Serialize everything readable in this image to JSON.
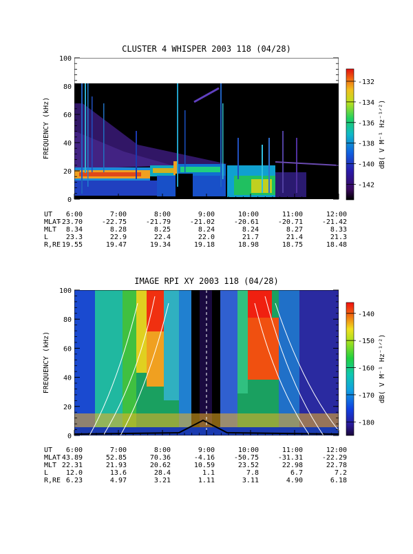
{
  "chart_data": [
    {
      "type": "heatmap",
      "title": "CLUSTER 4 WHISPER 2003 118 (04/28)",
      "ylabel": "FREQUENCY (kHz)",
      "ylim": [
        0,
        100
      ],
      "y_ticks": [
        "0",
        "20",
        "40",
        "60",
        "80",
        "100"
      ],
      "data_ylim": [
        0,
        80
      ],
      "x_ticks": [
        "6:00",
        "7:00",
        "8:00",
        "9:00",
        "10:00",
        "11:00",
        "12:00"
      ],
      "colorbar": {
        "label": "dB( V M⁻¹ Hz⁻¹ᐟ²)",
        "ticks": [
          "-132",
          "-134",
          "-136",
          "-138",
          "-140",
          "-142"
        ],
        "tick_values": [
          -132,
          -134,
          -136,
          -138,
          -140,
          -142
        ],
        "range": [
          -143.5,
          -130.8
        ]
      },
      "ephemeris": {
        "labels": [
          "UT",
          "MLAT",
          "MLT",
          "L",
          "R,RE"
        ],
        "rows": [
          [
            "6:00",
            "7:00",
            "8:00",
            "9:00",
            "10:00",
            "11:00",
            "12:00"
          ],
          [
            "-23.70",
            "-22.75",
            "-21.79",
            "-21.02",
            "-20.61",
            "-20.71",
            "-21.42"
          ],
          [
            "8.34",
            "8.28",
            "8.25",
            "8.24",
            "8.24",
            "8.27",
            "8.33"
          ],
          [
            "23.3",
            "22.9",
            "22.4",
            "22.0",
            "21.7",
            "21.4",
            "21.3"
          ],
          [
            "19.55",
            "19.47",
            "19.34",
            "19.18",
            "18.98",
            "18.75",
            "18.48"
          ]
        ]
      }
    },
    {
      "type": "heatmap",
      "title": "IMAGE RPI XY 2003 118 (04/28)",
      "ylabel": "FREQUENCY (kHz)",
      "ylim": [
        0,
        100
      ],
      "y_ticks": [
        "0",
        "20",
        "40",
        "60",
        "80",
        "100"
      ],
      "x_ticks": [
        "6:00",
        "7:00",
        "8:00",
        "9:00",
        "10:00",
        "11:00",
        "12:00"
      ],
      "colorbar": {
        "label": "dB( V M⁻¹ Hz⁻¹ᐟ²)",
        "ticks": [
          "-140",
          "-150",
          "-160",
          "-170",
          "-180"
        ],
        "tick_values": [
          -140,
          -150,
          -160,
          -170,
          -180
        ],
        "range": [
          -185,
          -136
        ]
      },
      "ephemeris": {
        "labels": [
          "UT",
          "MLAT",
          "MLT",
          "L",
          "R,RE"
        ],
        "rows": [
          [
            "6:00",
            "7:00",
            "8:00",
            "9:00",
            "10:00",
            "11:00",
            "12:00"
          ],
          [
            "43.89",
            "52.85",
            "70.36",
            "-4.16",
            "-50.75",
            "-31.31",
            "-22.29"
          ],
          [
            "22.31",
            "21.93",
            "20.62",
            "10.59",
            "23.52",
            "22.98",
            "22.78"
          ],
          [
            "12.0",
            "13.6",
            "28.4",
            "1.1",
            "7.8",
            "6.7",
            "7.2"
          ],
          [
            "6.23",
            "4.97",
            "3.21",
            "1.11",
            "3.11",
            "4.90",
            "6.18"
          ]
        ]
      }
    }
  ]
}
